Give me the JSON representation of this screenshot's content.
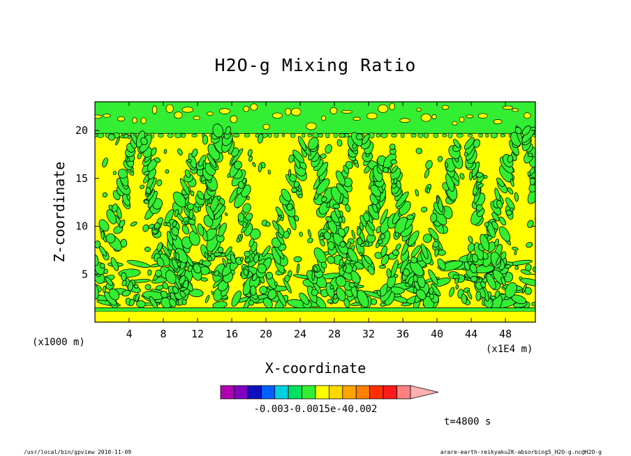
{
  "chart_data": {
    "type": "heatmap",
    "title": "H2O-g Mixing Ratio",
    "xlabel": "X-coordinate",
    "ylabel": "Z-coordinate",
    "x_unit": "(x1E4 m)",
    "y_unit": "(x1000 m)",
    "xlim": [
      0,
      51.5
    ],
    "ylim": [
      0,
      23
    ],
    "x_ticks": [
      4,
      8,
      12,
      16,
      20,
      24,
      28,
      32,
      36,
      40,
      44,
      48
    ],
    "y_ticks": [
      5,
      10,
      15,
      20
    ],
    "field_colors": {
      "background": "#ffff00",
      "anomaly": "#33ee33",
      "contour": "#000000"
    },
    "layers": {
      "surface_band_z": [
        1.1,
        1.5
      ],
      "upper_band_z": [
        19.7,
        23
      ]
    },
    "plumes": [
      {
        "x": 5,
        "peak_z": 19.5
      },
      {
        "x": 12,
        "peak_z": 17
      },
      {
        "x": 15,
        "peak_z": 20
      },
      {
        "x": 25,
        "peak_z": 19
      },
      {
        "x": 31,
        "peak_z": 19.5
      },
      {
        "x": 34,
        "peak_z": 17
      },
      {
        "x": 43,
        "peak_z": 19
      },
      {
        "x": 50,
        "peak_z": 20
      }
    ],
    "colorbar": {
      "colors": [
        "#b000b0",
        "#8000c0",
        "#1010c0",
        "#0060ff",
        "#00d0e0",
        "#00e060",
        "#33ee33",
        "#ffff00",
        "#ffd700",
        "#ffa500",
        "#ff7f00",
        "#ff3000",
        "#ff1a1a",
        "#ff8080",
        "#ffb0b0"
      ],
      "labels": [
        "-0.003",
        "-0.001",
        "5e-4",
        "0.002"
      ],
      "label_text": "-0.003-0.0015e-40.002"
    },
    "time_label": "t=4800 s"
  },
  "footer": {
    "left": "/usr/local/bin/gpview   2010-11-09",
    "right": "arare-earth-reikyaku2K-absorbing5_H2O-g.nc@H2O-g"
  }
}
